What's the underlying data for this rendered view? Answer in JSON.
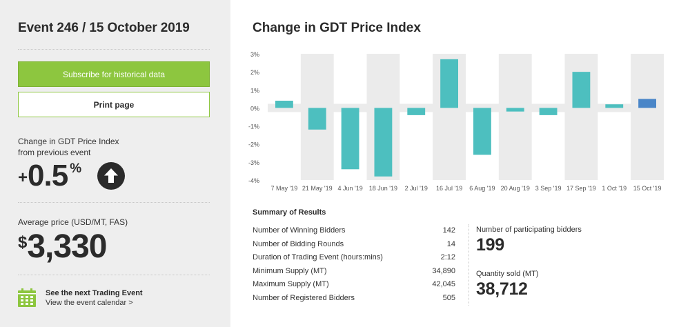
{
  "sidebar": {
    "event_title": "Event 246 / 15 October 2019",
    "subscribe_label": "Subscribe for historical data",
    "print_label": "Print page",
    "change_label_line1": "Change in GDT Price Index",
    "change_label_line2": "from previous event",
    "change_sign": "+",
    "change_value": "0.5",
    "change_unit": "%",
    "change_direction_icon": "arrow-up-circle-icon",
    "avg_price_label": "Average price (USD/MT, FAS)",
    "avg_price_currency": "$",
    "avg_price_value": "3,330",
    "next_event_icon": "calendar-icon",
    "next_event_title": "See the next Trading Event",
    "next_event_link": "View the event calendar >"
  },
  "main": {
    "title": "Change in GDT Price Index",
    "summary_title": "Summary of Results",
    "summary_rows": [
      {
        "label": "Number of Winning Bidders",
        "value": "142"
      },
      {
        "label": "Number of Bidding Rounds",
        "value": "14"
      },
      {
        "label": "Duration of Trading Event (hours:mins)",
        "value": "2:12"
      },
      {
        "label": "Minimum Supply (MT)",
        "value": "34,890"
      },
      {
        "label": "Maximum Supply (MT)",
        "value": "42,045"
      },
      {
        "label": "Number of Registered Bidders",
        "value": "505"
      }
    ],
    "participating_label": "Number of participating bidders",
    "participating_value": "199",
    "quantity_label": "Quantity sold (MT)",
    "quantity_value": "38,712"
  },
  "colors": {
    "accent_green": "#8dc63f",
    "bar_teal": "#4dbfbf",
    "bar_current_blue": "#4a86c8",
    "band_grey": "#ebebeb"
  },
  "chart_data": {
    "type": "bar",
    "categories": [
      "7 May '19",
      "21 May '19",
      "4 Jun '19",
      "18 Jun '19",
      "2 Jul '19",
      "16 Jul '19",
      "6 Aug '19",
      "20 Aug '19",
      "3 Sep '19",
      "17 Sep '19",
      "1 Oct '19",
      "15 Oct '19"
    ],
    "values": [
      0.4,
      -1.2,
      -3.4,
      -3.8,
      -0.4,
      2.7,
      -2.6,
      -0.2,
      -0.4,
      2.0,
      0.2,
      0.5
    ],
    "highlight_last": true,
    "ylim": [
      -4,
      3
    ],
    "yticks": [
      3,
      2,
      1,
      0,
      -1,
      -2,
      -3,
      -4
    ],
    "ytick_labels": [
      "3%",
      "2%",
      "1%",
      "0%",
      "-1%",
      "-2%",
      "-3%",
      "-4%"
    ],
    "grid": false
  }
}
